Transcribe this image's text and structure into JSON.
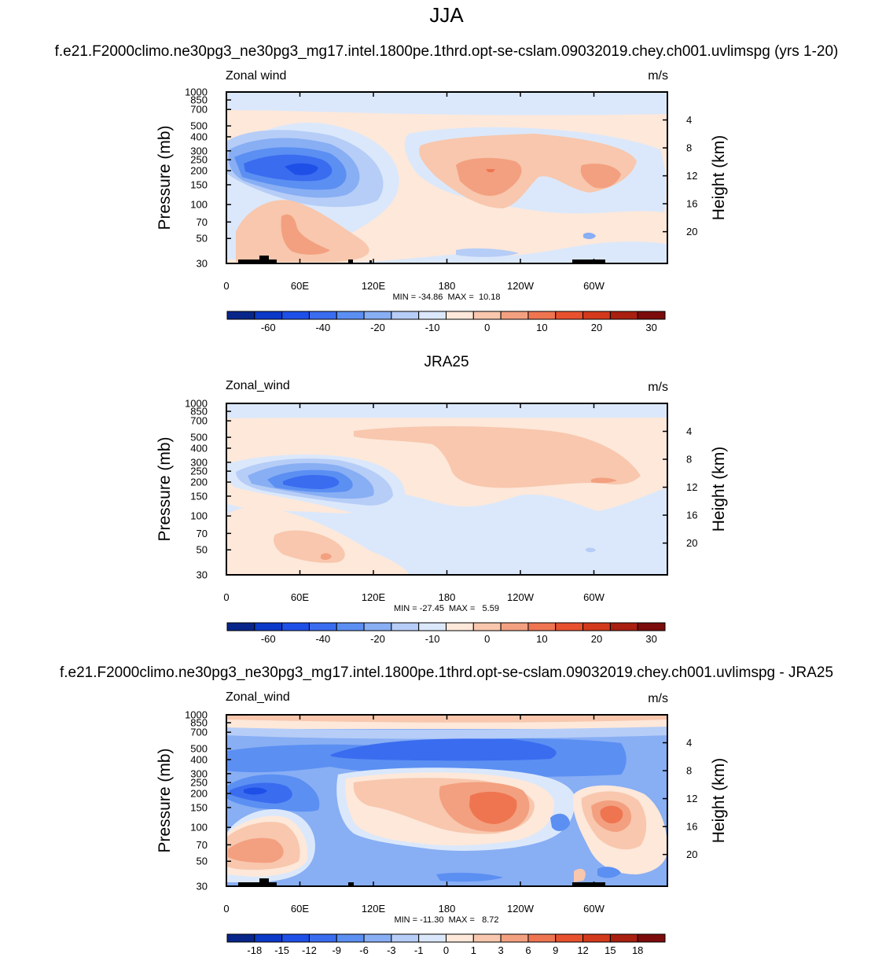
{
  "figure": {
    "title": "JJA",
    "subtitle_test": "f.e21.F2000climo.ne30pg3_ne30pg3_mg17.intel.1800pe.1thrd.opt-se-cslam.09032019.chey.ch001.uvlimspg (yrs 1-20)",
    "subtitle_obs": "JRA25",
    "subtitle_diff": "f.e21.F2000climo.ne30pg3_ne30pg3_mg17.intel.1800pe.1thrd.opt-se-cslam.09032019.chey.ch001.uvlimspg - JRA25"
  },
  "chart_data": [
    {
      "type": "heatmap",
      "variable": "Zonal wind",
      "units": "m/s",
      "ylabel": "Pressure (mb)",
      "ylabel_right": "Height (km)",
      "x_ticks": [
        "0",
        "60E",
        "120E",
        "180",
        "120W",
        "60W"
      ],
      "y_ticks": [
        "30",
        "50",
        "70",
        "100",
        "150",
        "200",
        "250",
        "300",
        "400",
        "500",
        "700",
        "850",
        "1000"
      ],
      "y_ticks_right": [
        "20",
        "16",
        "12",
        "8",
        "4"
      ],
      "stats": "MIN = -34.86  MAX =  10.18",
      "min": -34.86,
      "max": 10.18,
      "colorbar_labels": [
        "-60",
        "-40",
        "-20",
        "-10",
        "0",
        "10",
        "20",
        "30"
      ],
      "colors": [
        "#08268a",
        "#0b39c8",
        "#1e50e8",
        "#3a6cf0",
        "#5b8ff2",
        "#88aef4",
        "#b6cdf7",
        "#dbe8fb",
        "#fde8da",
        "#f8c7ad",
        "#f3a080",
        "#ef7551",
        "#e8512d",
        "#d23a1b",
        "#a91f10",
        "#7c0b0b"
      ]
    },
    {
      "type": "heatmap",
      "variable": "Zonal_wind",
      "units": "m/s",
      "ylabel": "Pressure (mb)",
      "ylabel_right": "Height (km)",
      "x_ticks": [
        "0",
        "60E",
        "120E",
        "180",
        "120W",
        "60W"
      ],
      "y_ticks": [
        "30",
        "50",
        "70",
        "100",
        "150",
        "200",
        "250",
        "300",
        "400",
        "500",
        "700",
        "850",
        "1000"
      ],
      "y_ticks_right": [
        "20",
        "16",
        "12",
        "8",
        "4"
      ],
      "stats": "MIN = -27.45  MAX =   5.59",
      "min": -27.45,
      "max": 5.59,
      "colorbar_labels": [
        "-60",
        "-40",
        "-20",
        "-10",
        "0",
        "10",
        "20",
        "30"
      ],
      "colors": [
        "#08268a",
        "#0b39c8",
        "#1e50e8",
        "#3a6cf0",
        "#5b8ff2",
        "#88aef4",
        "#b6cdf7",
        "#dbe8fb",
        "#fde8da",
        "#f8c7ad",
        "#f3a080",
        "#ef7551",
        "#e8512d",
        "#d23a1b",
        "#a91f10",
        "#7c0b0b"
      ]
    },
    {
      "type": "heatmap",
      "variable": "Zonal_wind",
      "units": "m/s",
      "ylabel": "Pressure (mb)",
      "ylabel_right": "Height (km)",
      "x_ticks": [
        "0",
        "60E",
        "120E",
        "180",
        "120W",
        "60W"
      ],
      "y_ticks": [
        "30",
        "50",
        "70",
        "100",
        "150",
        "200",
        "250",
        "300",
        "400",
        "500",
        "700",
        "850",
        "1000"
      ],
      "y_ticks_right": [
        "20",
        "16",
        "12",
        "8",
        "4"
      ],
      "stats": "MIN = -11.30  MAX =   8.72",
      "min": -11.3,
      "max": 8.72,
      "colorbar_labels": [
        "-18",
        "-15",
        "-12",
        "-9",
        "-6",
        "-3",
        "-1",
        "0",
        "1",
        "3",
        "6",
        "9",
        "12",
        "15",
        "18"
      ],
      "colors": [
        "#08268a",
        "#0b39c8",
        "#1e50e8",
        "#3a6cf0",
        "#5b8ff2",
        "#88aef4",
        "#b6cdf7",
        "#dbe8fb",
        "#fde8da",
        "#f8c7ad",
        "#f3a080",
        "#ef7551",
        "#e8512d",
        "#d23a1b",
        "#a91f10",
        "#7c0b0b"
      ]
    }
  ]
}
